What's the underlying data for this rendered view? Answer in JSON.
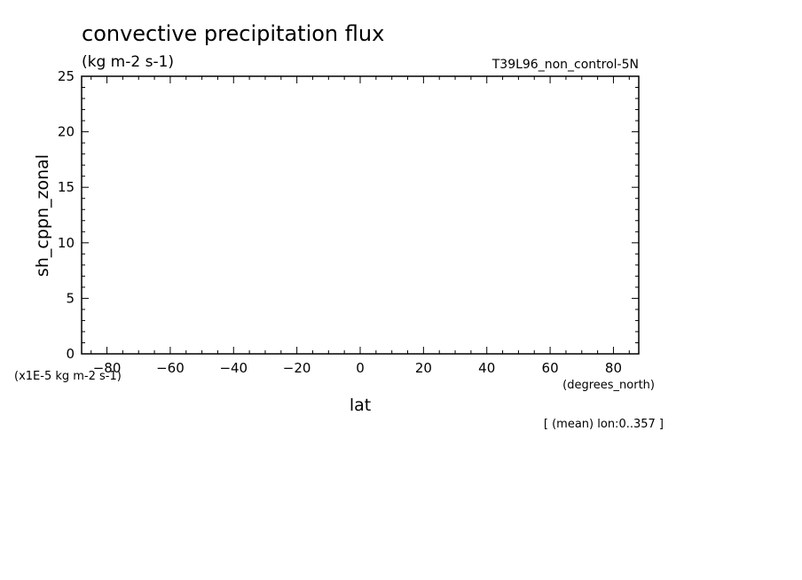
{
  "chart_data": {
    "type": "line",
    "title": "convective precipitation flux",
    "subtitle": "(kg m-2 s-1)",
    "dataset_label": "T39L96_non_control-5N",
    "xlabel": "lat",
    "xunits": "(degrees_north)",
    "ylabel": "sh_cppn_zonal",
    "yunits": "(x1E-5 kg m-2 s-1)",
    "footnote": "[ (mean) lon:0..357 ]",
    "xlim": [
      -88,
      88
    ],
    "ylim": [
      0,
      25
    ],
    "x_ticks": [
      -80,
      -60,
      -40,
      -20,
      0,
      20,
      40,
      60,
      80
    ],
    "y_ticks": [
      0,
      5,
      10,
      15,
      20,
      25
    ],
    "series": [],
    "grid": false
  }
}
